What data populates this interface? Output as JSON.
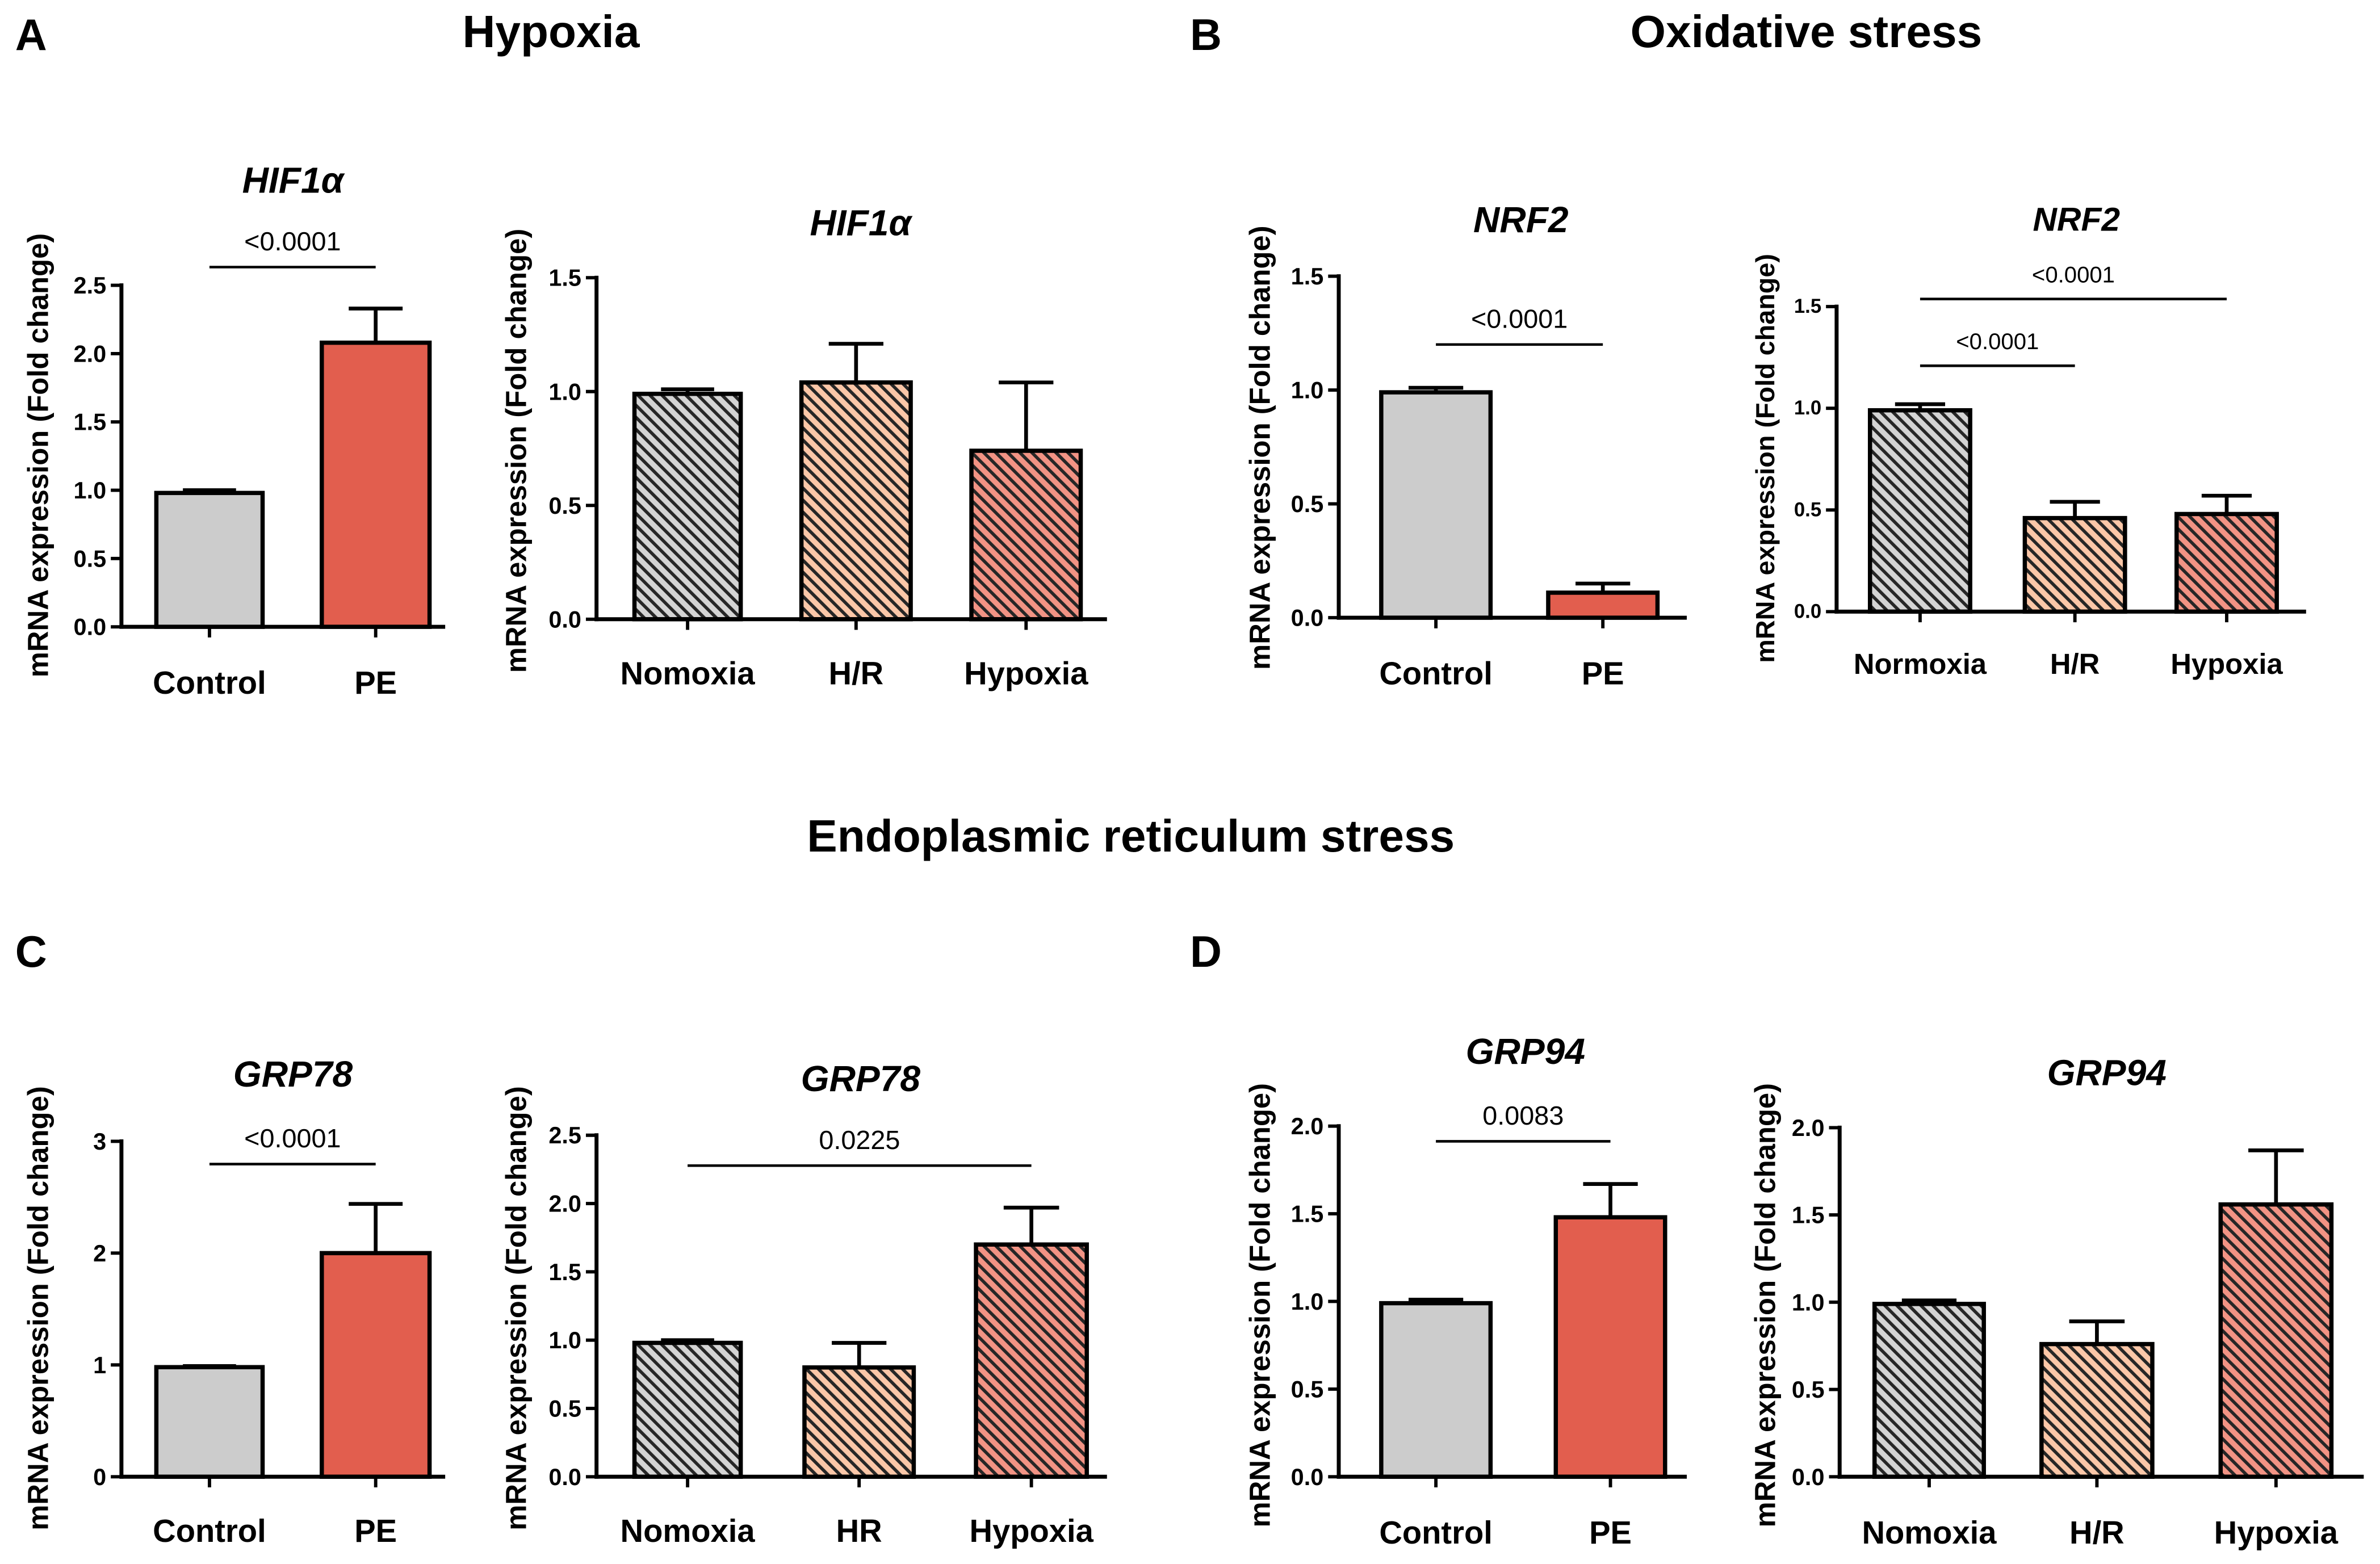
{
  "labels": {
    "A": "A",
    "B": "B",
    "C": "C",
    "D": "D"
  },
  "sections": {
    "hypoxia": "Hypoxia",
    "oxidative": "Oxidative stress",
    "er": "Endoplasmic reticulum stress"
  },
  "colors": {
    "hatch": "#262626"
  },
  "chart_data": [
    {
      "type": "bar",
      "title": "HIF1α",
      "ylabel": "mRNA expression (Fold change)",
      "categories": [
        "Control",
        "PE"
      ],
      "values": [
        0.98,
        2.08
      ],
      "errors": [
        0.02,
        0.25
      ],
      "ylim": [
        0,
        2.5
      ],
      "yticks": [
        "0.0",
        "0.5",
        "1.0",
        "1.5",
        "2.0",
        "2.5"
      ],
      "significance": [
        {
          "between": [
            0,
            1
          ],
          "label": "<0.0001"
        }
      ],
      "colors": [
        "#cccccc",
        "#e25e4e"
      ],
      "hatched": false
    },
    {
      "type": "bar",
      "title": "HIF1α",
      "ylabel": "mRNA expression (Fold change)",
      "categories": [
        "Nomoxia",
        "H/R",
        "Hypoxia"
      ],
      "values": [
        0.99,
        1.04,
        0.74
      ],
      "errors": [
        0.02,
        0.17,
        0.3
      ],
      "ylim": [
        0,
        1.5
      ],
      "yticks": [
        "0.0",
        "0.5",
        "1.0",
        "1.5"
      ],
      "significance": [],
      "colors": [
        "#d4d4d4",
        "#fbc7a8",
        "#f29384"
      ],
      "hatched": true
    },
    {
      "type": "bar",
      "title": "NRF2",
      "ylabel": "mRNA expression (Fold change)",
      "categories": [
        "Control",
        "PE"
      ],
      "values": [
        0.99,
        0.11
      ],
      "errors": [
        0.02,
        0.04
      ],
      "ylim": [
        0,
        1.5
      ],
      "yticks": [
        "0.0",
        "0.5",
        "1.0",
        "1.5"
      ],
      "significance": [
        {
          "between": [
            0,
            1
          ],
          "label": "<0.0001"
        }
      ],
      "colors": [
        "#cccccc",
        "#e25e4e"
      ],
      "hatched": false
    },
    {
      "type": "bar",
      "title": "NRF2",
      "ylabel": "mRNA expression (Fold change)",
      "categories": [
        "Normoxia",
        "H/R",
        "Hypoxia"
      ],
      "values": [
        0.99,
        0.46,
        0.48
      ],
      "errors": [
        0.03,
        0.08,
        0.09
      ],
      "ylim": [
        0,
        1.5
      ],
      "yticks": [
        "0.0",
        "0.5",
        "1.0",
        "1.5"
      ],
      "significance": [
        {
          "between": [
            0,
            1
          ],
          "label": "<0.0001"
        },
        {
          "between": [
            0,
            2
          ],
          "label": "<0.0001"
        }
      ],
      "colors": [
        "#d4d4d4",
        "#fbc7a8",
        "#f29384"
      ],
      "hatched": true
    },
    {
      "type": "bar",
      "title": "GRP78",
      "ylabel": "mRNA expression (Fold change)",
      "categories": [
        "Control",
        "PE"
      ],
      "values": [
        0.98,
        2.0
      ],
      "errors": [
        0.01,
        0.44
      ],
      "ylim": [
        0,
        3
      ],
      "yticks": [
        "0",
        "1",
        "2",
        "3"
      ],
      "significance": [
        {
          "between": [
            0,
            1
          ],
          "label": "<0.0001"
        }
      ],
      "colors": [
        "#cccccc",
        "#e25e4e"
      ],
      "hatched": false
    },
    {
      "type": "bar",
      "title": "GRP78",
      "ylabel": "mRNA expression (Fold change)",
      "categories": [
        "Nomoxia",
        "HR",
        "Hypoxia"
      ],
      "values": [
        0.98,
        0.8,
        1.7
      ],
      "errors": [
        0.02,
        0.18,
        0.27
      ],
      "ylim": [
        0,
        2.5
      ],
      "yticks": [
        "0.0",
        "0.5",
        "1.0",
        "1.5",
        "2.0",
        "2.5"
      ],
      "significance": [
        {
          "between": [
            0,
            2
          ],
          "label": "0.0225"
        }
      ],
      "colors": [
        "#d4d4d4",
        "#fbc7a8",
        "#f29384"
      ],
      "hatched": true
    },
    {
      "type": "bar",
      "title": "GRP94",
      "ylabel": "mRNA expression (Fold change)",
      "categories": [
        "Control",
        "PE"
      ],
      "values": [
        0.99,
        1.48
      ],
      "errors": [
        0.02,
        0.19
      ],
      "ylim": [
        0,
        2.0
      ],
      "yticks": [
        "0.0",
        "0.5",
        "1.0",
        "1.5",
        "2.0"
      ],
      "significance": [
        {
          "between": [
            0,
            1
          ],
          "label": "0.0083"
        }
      ],
      "colors": [
        "#cccccc",
        "#e25e4e"
      ],
      "hatched": false
    },
    {
      "type": "bar",
      "title": "GRP94",
      "ylabel": "mRNA expression (Fold change)",
      "categories": [
        "Nomoxia",
        "H/R",
        "Hypoxia"
      ],
      "values": [
        0.99,
        0.76,
        1.56
      ],
      "errors": [
        0.02,
        0.13,
        0.31
      ],
      "ylim": [
        0,
        2.0
      ],
      "yticks": [
        "0.0",
        "0.5",
        "1.0",
        "1.5",
        "2.0"
      ],
      "significance": [],
      "colors": [
        "#d4d4d4",
        "#fbc7a8",
        "#f29384"
      ],
      "hatched": true
    }
  ]
}
